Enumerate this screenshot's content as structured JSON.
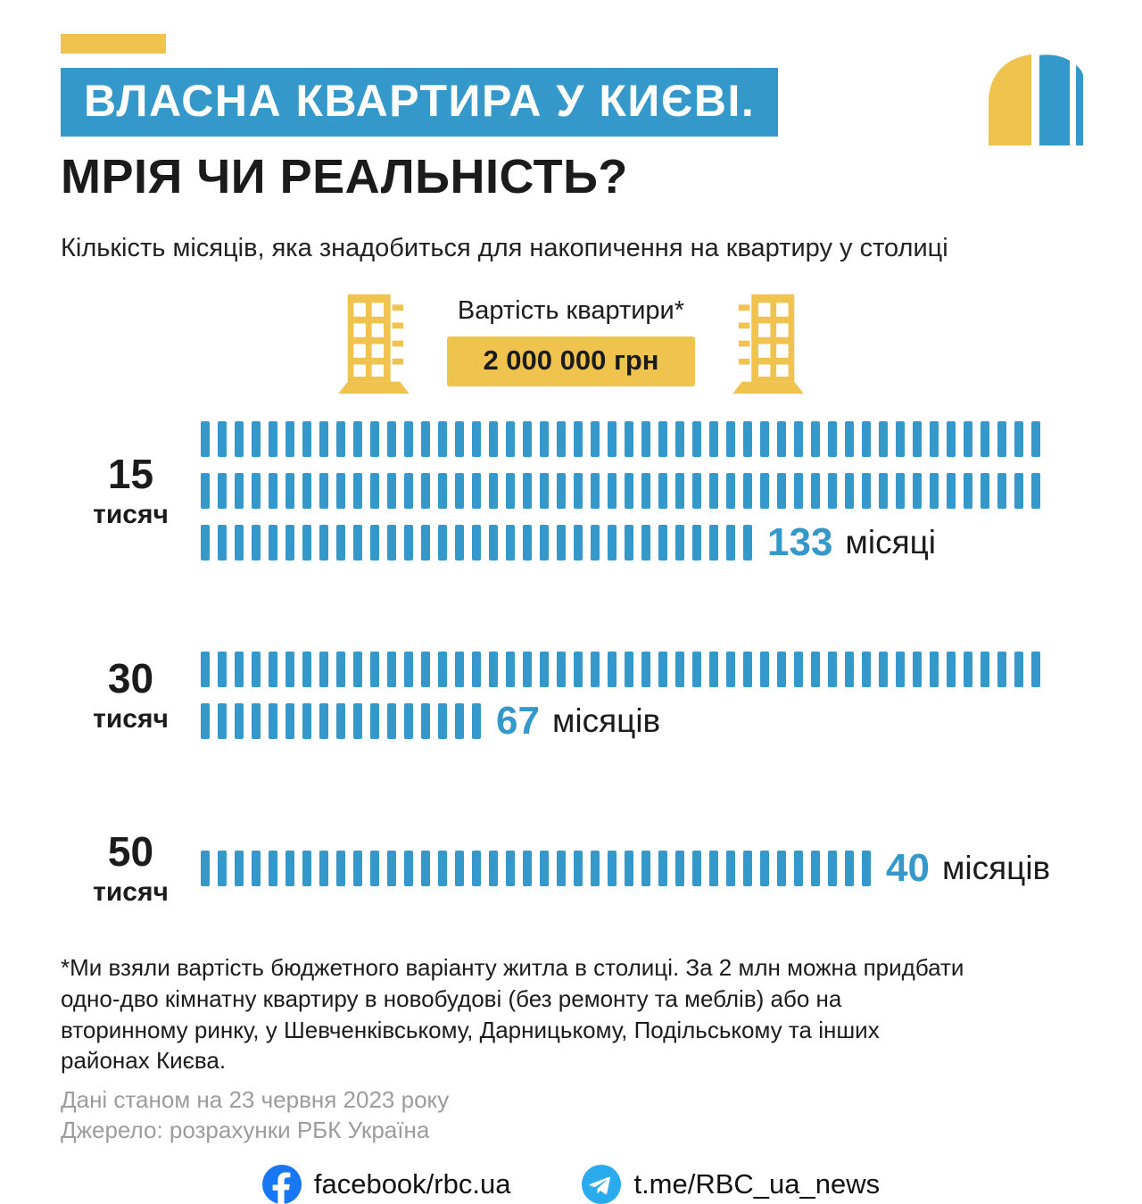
{
  "colors": {
    "blue": "#3598CB",
    "yellow": "#F0C34F",
    "dark": "#1B1B1B",
    "gray": "#9C9C9C",
    "facebook": "#1877F2",
    "telegram": "#2AABEE"
  },
  "header": {
    "title_line1": "ВЛАСНА КВАРТИРА У КИЄВІ.",
    "title_line2": "МРІЯ ЧИ РЕАЛЬНІСТЬ?",
    "subtitle": "Кількість місяців, яка знадобиться для накопичення на квартиру у столиці"
  },
  "price": {
    "label": "Вартість квартири*",
    "value": "2 000 000 грн"
  },
  "chart_data": {
    "type": "bar",
    "title": "Кількість місяців, яка знадобиться для накопичення на квартиру у столиці",
    "categories": [
      "15 тисяч",
      "30 тисяч",
      "50 тисяч"
    ],
    "values": [
      133,
      67,
      40
    ],
    "unit": "місяців",
    "per_row_capacity": 50,
    "bar_color": "#3598CB",
    "legend": "off",
    "rows": [
      {
        "amount": "15",
        "unit": "тисяч",
        "months": 133,
        "label": "133",
        "suffix": "місяці"
      },
      {
        "amount": "30",
        "unit": "тисяч",
        "months": 67,
        "label": "67",
        "suffix": "місяців"
      },
      {
        "amount": "50",
        "unit": "тисяч",
        "months": 40,
        "label": "40",
        "suffix": "місяців"
      }
    ]
  },
  "footnote": {
    "text": "*Ми взяли вартість бюджетного варіанту житла в столиці. За 2 млн можна придбати одно-дво кімнатну квартиру в новобудові (без ремонту та меблів) або на вторинному ринку, у Шевченківському, Дарницькому, Подільському та інших районах Києва.",
    "date": "Дані станом на 23 червня 2023 року",
    "source": "Джерело: розрахунки РБК Україна"
  },
  "footer": {
    "facebook": "facebook/rbc.ua",
    "telegram": "t.me/RBC_ua_news"
  }
}
